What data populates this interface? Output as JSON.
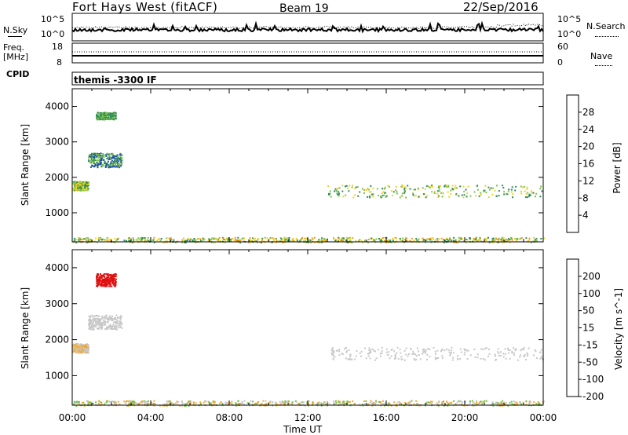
{
  "header": {
    "station": "Fort Hays West (fitACF)",
    "beam": "Beam 19",
    "date": "22/Sep/2016",
    "cpid_label": "CPID",
    "cpid_value": "themis -3300 IF"
  },
  "top_panels": {
    "noise": {
      "left_label": "N.Sky",
      "left_ticks": [
        "10^5",
        "10^0"
      ],
      "right_label": "N.Search",
      "right_ticks": [
        "10^5",
        "10^0"
      ]
    },
    "freq": {
      "left_label_1": "Freq.",
      "left_label_2": "[MHz]",
      "left_ticks": [
        "18",
        "8"
      ],
      "right_label": "Nave",
      "right_ticks": [
        "60",
        "0"
      ]
    }
  },
  "chart_data": [
    {
      "type": "heatmap",
      "panel": "power",
      "ylabel": "Slant Range [km]",
      "xlabel": "",
      "colorbar_label": "Power [dB]",
      "colorbar_ticks": [
        "4",
        "8",
        "12",
        "16",
        "20",
        "24",
        "28"
      ],
      "ylim": [
        180,
        4500
      ],
      "yticks": [
        "1000",
        "2000",
        "3000",
        "4000"
      ],
      "xlim_hours": [
        0,
        24
      ],
      "palette": [
        "#1010ff",
        "#1e4ea8",
        "#2e8b57",
        "#7fc24a",
        "#f0d020",
        "#f59a1e",
        "#ee5a10",
        "#e01010"
      ],
      "clusters": [
        {
          "t": [
            0.0,
            0.8
          ],
          "r": [
            1650,
            1900
          ],
          "level": [
            2,
            4
          ]
        },
        {
          "t": [
            0.8,
            2.5
          ],
          "r": [
            2300,
            2700
          ],
          "level": [
            1,
            3
          ]
        },
        {
          "t": [
            1.2,
            2.2
          ],
          "r": [
            3650,
            3850
          ],
          "level": [
            2,
            3
          ]
        },
        {
          "t": [
            13.0,
            24.0
          ],
          "r": [
            1450,
            1800
          ],
          "level": [
            2,
            4
          ]
        },
        {
          "t": [
            0.0,
            24.0
          ],
          "r": [
            180,
            320
          ],
          "level": [
            2,
            5
          ]
        }
      ]
    },
    {
      "type": "heatmap",
      "panel": "velocity",
      "ylabel": "Slant Range [km]",
      "xlabel": "Time UT",
      "colorbar_label": "Velocity [m s^-1]",
      "colorbar_ticks": [
        "200",
        "100",
        "50",
        "15",
        "-15",
        "-50",
        "-100",
        "-200"
      ],
      "ylim": [
        180,
        4500
      ],
      "yticks": [
        "1000",
        "2000",
        "3000",
        "4000"
      ],
      "xlim_hours": [
        0,
        24
      ],
      "xticks": [
        "00:00",
        "04:00",
        "08:00",
        "12:00",
        "16:00",
        "20:00",
        "00:00"
      ],
      "palette": [
        "#1a3fd6",
        "#2c6d5a",
        "#6bc046",
        "#c8c8c8",
        "#f5a623",
        "#ee7d15",
        "#e84a10",
        "#e01010"
      ],
      "clusters": [
        {
          "t": [
            0.0,
            0.8
          ],
          "r": [
            1650,
            1900
          ],
          "level": [
            3,
            4
          ]
        },
        {
          "t": [
            0.8,
            2.5
          ],
          "r": [
            2300,
            2700
          ],
          "level": [
            3,
            3
          ]
        },
        {
          "t": [
            1.2,
            2.2
          ],
          "r": [
            3500,
            3850
          ],
          "level": [
            7,
            7
          ]
        },
        {
          "t": [
            13.0,
            24.0
          ],
          "r": [
            1450,
            1800
          ],
          "level": [
            3,
            3
          ]
        },
        {
          "t": [
            0.0,
            24.0
          ],
          "r": [
            180,
            320
          ],
          "level": [
            2,
            4
          ]
        }
      ]
    }
  ]
}
